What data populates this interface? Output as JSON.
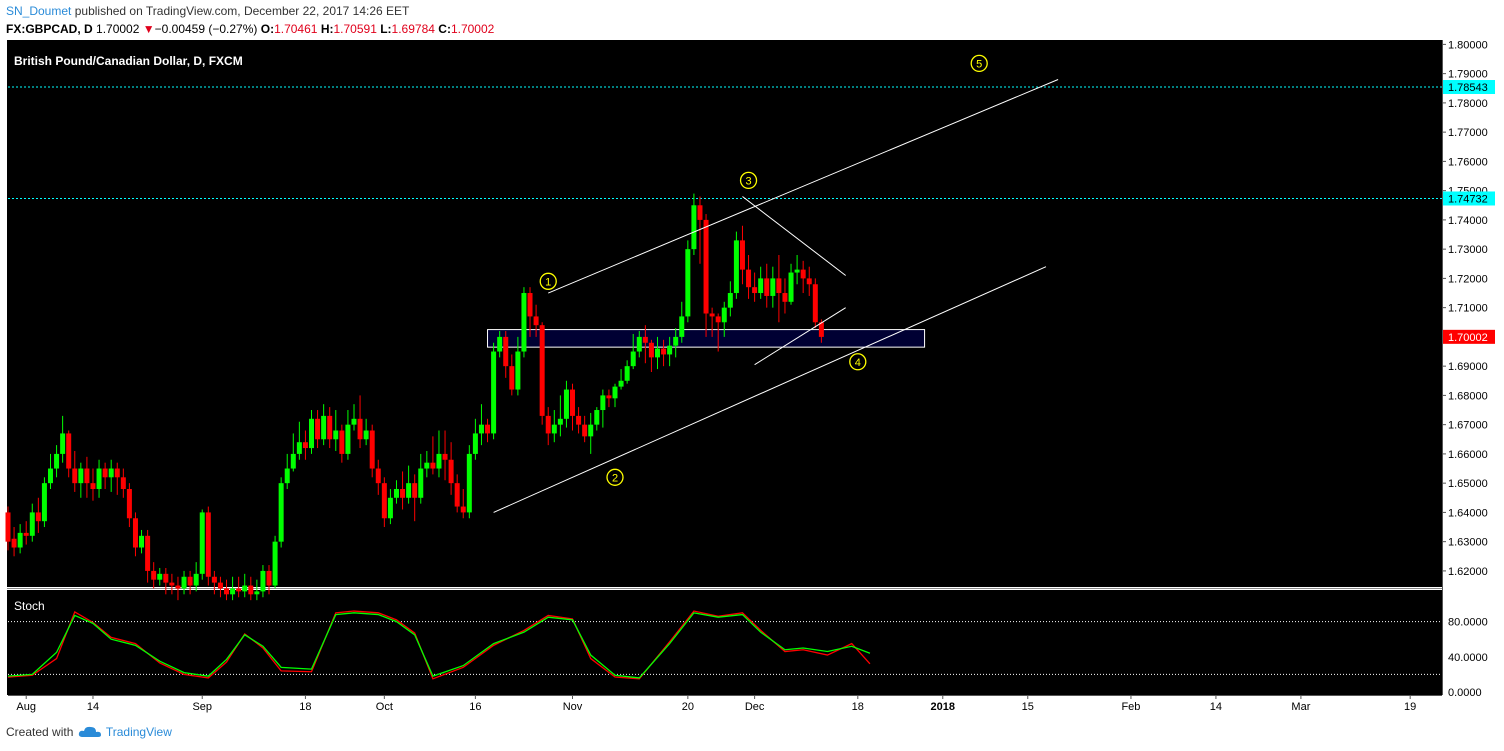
{
  "header": {
    "author": "SN_Doumet",
    "published": "published on TradingView.com, December 22, 2017 14:26 EET",
    "symbol": "FX:GBPCAD, D",
    "last": "1.70002",
    "change_arrow": "▼",
    "change": "−0.00459 (−0.27%)",
    "open_label": "O:",
    "open": "1.70461",
    "high_label": "H:",
    "high": "1.70591",
    "low_label": "L:",
    "low": "1.69784",
    "close_label": "C:",
    "close": "1.70002"
  },
  "footer": {
    "created_with": "Created with",
    "brand": "TradingView",
    "logo_icon": "tradingview-cloud-icon"
  },
  "colors": {
    "up": "#00ff00",
    "down": "#ff0000",
    "background": "#000000",
    "white_line": "#ffffff",
    "wave_label": "#ffff00",
    "zone_fill": "#000033",
    "price_tag": "#ff0000",
    "level_tag": "#00ffff",
    "stoch_k": "#00ff00",
    "stoch_d": "#ff0000"
  },
  "chart_data": {
    "type": "candlestick",
    "title": "British Pound/Canadian Dollar, D, FXCM",
    "ylim": [
      1.6145,
      1.8015
    ],
    "y_ticks": [
      1.8,
      1.79,
      1.78,
      1.77,
      1.76,
      1.75,
      1.74,
      1.73,
      1.72,
      1.71,
      1.7,
      1.69,
      1.68,
      1.67,
      1.66,
      1.65,
      1.64,
      1.63,
      1.62
    ],
    "y_tick_labels": [
      "1.80000",
      "1.79000",
      "1.78000",
      "1.77000",
      "1.76000",
      "1.75000",
      "1.74000",
      "1.73000",
      "1.72000",
      "1.71000",
      "1.70000",
      "1.69000",
      "1.68000",
      "1.67000",
      "1.66000",
      "1.65000",
      "1.64000",
      "1.63000",
      "1.62000"
    ],
    "x_labels": [
      {
        "label": "Aug",
        "day": 3
      },
      {
        "label": "14",
        "day": 14
      },
      {
        "label": "Sep",
        "day": 32
      },
      {
        "label": "18",
        "day": 49
      },
      {
        "label": "Oct",
        "day": 62
      },
      {
        "label": "16",
        "day": 77
      },
      {
        "label": "Nov",
        "day": 93
      },
      {
        "label": "20",
        "day": 112
      },
      {
        "label": "Dec",
        "day": 123
      },
      {
        "label": "18",
        "day": 140
      },
      {
        "label": "2018",
        "day": 154
      },
      {
        "label": "15",
        "day": 168
      },
      {
        "label": "Feb",
        "day": 185
      },
      {
        "label": "14",
        "day": 199
      },
      {
        "label": "Mar",
        "day": 213
      },
      {
        "label": "19",
        "day": 231
      }
    ],
    "candles": [
      [
        1.64,
        1.63,
        1.642,
        1.627
      ],
      [
        1.631,
        1.628,
        1.635,
        1.625
      ],
      [
        1.628,
        1.633,
        1.636,
        1.626
      ],
      [
        1.633,
        1.632,
        1.637,
        1.629
      ],
      [
        1.632,
        1.64,
        1.643,
        1.63
      ],
      [
        1.64,
        1.637,
        1.645,
        1.633
      ],
      [
        1.637,
        1.65,
        1.652,
        1.635
      ],
      [
        1.65,
        1.655,
        1.66,
        1.648
      ],
      [
        1.655,
        1.66,
        1.663,
        1.652
      ],
      [
        1.66,
        1.667,
        1.673,
        1.657
      ],
      [
        1.667,
        1.655,
        1.668,
        1.652
      ],
      [
        1.655,
        1.65,
        1.661,
        1.647
      ],
      [
        1.65,
        1.655,
        1.657,
        1.645
      ],
      [
        1.655,
        1.65,
        1.659,
        1.645
      ],
      [
        1.65,
        1.648,
        1.655,
        1.644
      ],
      [
        1.648,
        1.655,
        1.658,
        1.645
      ],
      [
        1.655,
        1.652,
        1.657,
        1.648
      ],
      [
        1.652,
        1.655,
        1.658,
        1.647
      ],
      [
        1.655,
        1.652,
        1.657,
        1.646
      ],
      [
        1.652,
        1.648,
        1.655,
        1.645
      ],
      [
        1.648,
        1.638,
        1.65,
        1.635
      ],
      [
        1.638,
        1.628,
        1.64,
        1.625
      ],
      [
        1.628,
        1.632,
        1.634,
        1.626
      ],
      [
        1.632,
        1.62,
        1.634,
        1.616
      ],
      [
        1.62,
        1.617,
        1.623,
        1.614
      ],
      [
        1.617,
        1.619,
        1.621,
        1.615
      ],
      [
        1.619,
        1.616,
        1.621,
        1.612
      ],
      [
        1.616,
        1.615,
        1.619,
        1.612
      ],
      [
        1.615,
        1.614,
        1.618,
        1.61
      ],
      [
        1.614,
        1.618,
        1.62,
        1.612
      ],
      [
        1.618,
        1.615,
        1.62,
        1.612
      ],
      [
        1.615,
        1.619,
        1.623,
        1.613
      ],
      [
        1.619,
        1.64,
        1.641,
        1.617
      ],
      [
        1.64,
        1.618,
        1.642,
        1.615
      ],
      [
        1.618,
        1.616,
        1.62,
        1.612
      ],
      [
        1.616,
        1.614,
        1.618,
        1.611
      ],
      [
        1.614,
        1.612,
        1.617,
        1.61
      ],
      [
        1.612,
        1.614,
        1.618,
        1.61
      ],
      [
        1.614,
        1.613,
        1.618,
        1.611
      ],
      [
        1.613,
        1.615,
        1.619,
        1.611
      ],
      [
        1.615,
        1.612,
        1.618,
        1.61
      ],
      [
        1.612,
        1.613,
        1.617,
        1.61
      ],
      [
        1.613,
        1.62,
        1.622,
        1.611
      ],
      [
        1.62,
        1.615,
        1.622,
        1.612
      ],
      [
        1.615,
        1.63,
        1.632,
        1.614
      ],
      [
        1.63,
        1.65,
        1.652,
        1.628
      ],
      [
        1.65,
        1.655,
        1.66,
        1.648
      ],
      [
        1.655,
        1.66,
        1.667,
        1.654
      ],
      [
        1.66,
        1.664,
        1.671,
        1.658
      ],
      [
        1.664,
        1.662,
        1.668,
        1.658
      ],
      [
        1.662,
        1.672,
        1.675,
        1.66
      ],
      [
        1.672,
        1.665,
        1.675,
        1.662
      ],
      [
        1.665,
        1.673,
        1.677,
        1.663
      ],
      [
        1.673,
        1.665,
        1.676,
        1.662
      ],
      [
        1.665,
        1.668,
        1.675,
        1.661
      ],
      [
        1.668,
        1.66,
        1.67,
        1.657
      ],
      [
        1.66,
        1.67,
        1.675,
        1.658
      ],
      [
        1.67,
        1.672,
        1.677,
        1.668
      ],
      [
        1.672,
        1.665,
        1.68,
        1.662
      ],
      [
        1.665,
        1.668,
        1.672,
        1.663
      ],
      [
        1.668,
        1.655,
        1.67,
        1.652
      ],
      [
        1.655,
        1.65,
        1.658,
        1.646
      ],
      [
        1.65,
        1.638,
        1.652,
        1.635
      ],
      [
        1.638,
        1.645,
        1.648,
        1.636
      ],
      [
        1.645,
        1.648,
        1.651,
        1.643
      ],
      [
        1.648,
        1.645,
        1.654,
        1.641
      ],
      [
        1.645,
        1.65,
        1.656,
        1.643
      ],
      [
        1.65,
        1.645,
        1.653,
        1.637
      ],
      [
        1.645,
        1.655,
        1.66,
        1.643
      ],
      [
        1.655,
        1.657,
        1.661,
        1.652
      ],
      [
        1.657,
        1.655,
        1.666,
        1.653
      ],
      [
        1.655,
        1.66,
        1.668,
        1.652
      ],
      [
        1.66,
        1.658,
        1.668,
        1.651
      ],
      [
        1.658,
        1.65,
        1.664,
        1.646
      ],
      [
        1.65,
        1.642,
        1.653,
        1.64
      ],
      [
        1.642,
        1.64,
        1.648,
        1.638
      ],
      [
        1.64,
        1.66,
        1.663,
        1.638
      ],
      [
        1.66,
        1.667,
        1.672,
        1.658
      ],
      [
        1.667,
        1.67,
        1.677,
        1.663
      ],
      [
        1.67,
        1.667,
        1.672,
        1.664
      ],
      [
        1.667,
        1.695,
        1.698,
        1.665
      ],
      [
        1.695,
        1.7,
        1.702,
        1.693
      ],
      [
        1.7,
        1.69,
        1.702,
        1.686
      ],
      [
        1.69,
        1.682,
        1.694,
        1.68
      ],
      [
        1.682,
        1.695,
        1.7,
        1.68
      ],
      [
        1.695,
        1.715,
        1.717,
        1.693
      ],
      [
        1.715,
        1.707,
        1.717,
        1.7
      ],
      [
        1.707,
        1.704,
        1.711,
        1.7
      ],
      [
        1.704,
        1.673,
        1.705,
        1.67
      ],
      [
        1.673,
        1.667,
        1.676,
        1.663
      ],
      [
        1.667,
        1.67,
        1.675,
        1.664
      ],
      [
        1.67,
        1.672,
        1.68,
        1.666
      ],
      [
        1.672,
        1.682,
        1.685,
        1.669
      ],
      [
        1.682,
        1.673,
        1.684,
        1.668
      ],
      [
        1.673,
        1.67,
        1.676,
        1.667
      ],
      [
        1.67,
        1.666,
        1.673,
        1.664
      ],
      [
        1.666,
        1.67,
        1.674,
        1.66
      ],
      [
        1.67,
        1.675,
        1.676,
        1.668
      ],
      [
        1.675,
        1.68,
        1.682,
        1.669
      ],
      [
        1.68,
        1.679,
        1.682,
        1.676
      ],
      [
        1.679,
        1.683,
        1.684,
        1.676
      ],
      [
        1.683,
        1.685,
        1.689,
        1.682
      ],
      [
        1.685,
        1.69,
        1.692,
        1.684
      ],
      [
        1.69,
        1.695,
        1.701,
        1.689
      ],
      [
        1.695,
        1.7,
        1.702,
        1.693
      ],
      [
        1.7,
        1.698,
        1.704,
        1.691
      ],
      [
        1.698,
        1.693,
        1.699,
        1.688
      ],
      [
        1.693,
        1.696,
        1.7,
        1.689
      ],
      [
        1.696,
        1.694,
        1.699,
        1.69
      ],
      [
        1.694,
        1.697,
        1.7,
        1.69
      ],
      [
        1.697,
        1.7,
        1.703,
        1.693
      ],
      [
        1.7,
        1.707,
        1.712,
        1.698
      ],
      [
        1.707,
        1.73,
        1.733,
        1.705
      ],
      [
        1.73,
        1.745,
        1.749,
        1.728
      ],
      [
        1.745,
        1.74,
        1.748,
        1.725
      ],
      [
        1.74,
        1.708,
        1.742,
        1.7
      ],
      [
        1.708,
        1.707,
        1.71,
        1.7
      ],
      [
        1.707,
        1.705,
        1.708,
        1.695
      ],
      [
        1.705,
        1.71,
        1.712,
        1.7
      ],
      [
        1.71,
        1.715,
        1.719,
        1.707
      ],
      [
        1.715,
        1.733,
        1.736,
        1.713
      ],
      [
        1.733,
        1.723,
        1.738,
        1.718
      ],
      [
        1.723,
        1.717,
        1.728,
        1.713
      ],
      [
        1.717,
        1.715,
        1.722,
        1.712
      ],
      [
        1.715,
        1.72,
        1.724,
        1.713
      ],
      [
        1.72,
        1.714,
        1.725,
        1.71
      ],
      [
        1.714,
        1.72,
        1.724,
        1.71
      ],
      [
        1.72,
        1.715,
        1.728,
        1.705
      ],
      [
        1.715,
        1.712,
        1.72,
        1.708
      ],
      [
        1.712,
        1.722,
        1.725,
        1.711
      ],
      [
        1.722,
        1.723,
        1.728,
        1.718
      ],
      [
        1.723,
        1.72,
        1.726,
        1.715
      ],
      [
        1.72,
        1.718,
        1.724,
        1.714
      ],
      [
        1.718,
        1.705,
        1.72,
        1.703
      ],
      [
        1.705,
        1.7,
        1.706,
        1.698
      ]
    ],
    "trendlines": [
      {
        "from": [
          80,
          1.64
        ],
        "to": [
          171,
          1.724
        ]
      },
      {
        "from": [
          89,
          1.715
        ],
        "to": [
          173,
          1.788
        ]
      },
      {
        "from": [
          121,
          1.748
        ],
        "to": [
          138,
          1.721
        ]
      },
      {
        "from": [
          123,
          1.6905
        ],
        "to": [
          138,
          1.71
        ]
      }
    ],
    "zone": {
      "x0": 79,
      "x1": 151,
      "y_low": 1.6965,
      "y_high": 1.7025
    },
    "h_levels": [
      {
        "price": 1.78543,
        "label": "1.78543"
      },
      {
        "price": 1.74732,
        "label": "1.74732"
      }
    ],
    "current_price": {
      "price": 1.70002,
      "label": "1.70002"
    },
    "wave_labels": [
      {
        "text": "1",
        "day": 89,
        "price": 1.719
      },
      {
        "text": "2",
        "day": 100,
        "price": 1.652
      },
      {
        "text": "3",
        "day": 122,
        "price": 1.7535
      },
      {
        "text": "4",
        "day": 140,
        "price": 1.6915
      },
      {
        "text": "5",
        "day": 160,
        "price": 1.7935
      }
    ],
    "stoch": {
      "label": "Stoch",
      "ylim": [
        0,
        100
      ],
      "y_ticks": [
        0,
        40,
        80
      ],
      "y_tick_labels": [
        "0.0000",
        "40.0000",
        "80.0000"
      ],
      "overbought": 80,
      "oversold": 20,
      "k": [
        [
          0,
          18
        ],
        [
          4,
          20
        ],
        [
          8,
          45
        ],
        [
          11,
          87
        ],
        [
          14,
          78
        ],
        [
          17,
          60
        ],
        [
          21,
          53
        ],
        [
          25,
          35
        ],
        [
          29,
          22
        ],
        [
          33,
          18
        ],
        [
          36,
          37
        ],
        [
          39,
          65
        ],
        [
          42,
          52
        ],
        [
          45,
          28
        ],
        [
          50,
          26
        ],
        [
          54,
          88
        ],
        [
          57,
          90
        ],
        [
          61,
          88
        ],
        [
          64,
          80
        ],
        [
          67,
          65
        ],
        [
          70,
          18
        ],
        [
          75,
          30
        ],
        [
          80,
          55
        ],
        [
          85,
          68
        ],
        [
          89,
          85
        ],
        [
          93,
          82
        ],
        [
          96,
          42
        ],
        [
          100,
          19
        ],
        [
          104,
          16
        ],
        [
          109,
          55
        ],
        [
          113,
          90
        ],
        [
          117,
          85
        ],
        [
          121,
          88
        ],
        [
          124,
          68
        ],
        [
          128,
          48
        ],
        [
          131,
          50
        ],
        [
          135,
          46
        ],
        [
          139,
          52
        ],
        [
          142,
          44
        ]
      ],
      "d": [
        [
          0,
          17
        ],
        [
          4,
          19
        ],
        [
          8,
          38
        ],
        [
          11,
          91
        ],
        [
          14,
          79
        ],
        [
          17,
          62
        ],
        [
          21,
          55
        ],
        [
          25,
          33
        ],
        [
          29,
          20
        ],
        [
          33,
          16
        ],
        [
          36,
          34
        ],
        [
          39,
          66
        ],
        [
          42,
          50
        ],
        [
          45,
          24
        ],
        [
          50,
          23
        ],
        [
          54,
          90
        ],
        [
          57,
          92
        ],
        [
          61,
          90
        ],
        [
          64,
          82
        ],
        [
          67,
          67
        ],
        [
          70,
          15
        ],
        [
          75,
          28
        ],
        [
          80,
          53
        ],
        [
          85,
          70
        ],
        [
          89,
          87
        ],
        [
          93,
          83
        ],
        [
          96,
          38
        ],
        [
          100,
          17
        ],
        [
          104,
          15
        ],
        [
          109,
          57
        ],
        [
          113,
          92
        ],
        [
          117,
          86
        ],
        [
          121,
          90
        ],
        [
          124,
          70
        ],
        [
          128,
          46
        ],
        [
          131,
          48
        ],
        [
          135,
          42
        ],
        [
          139,
          55
        ],
        [
          142,
          32
        ]
      ]
    }
  }
}
